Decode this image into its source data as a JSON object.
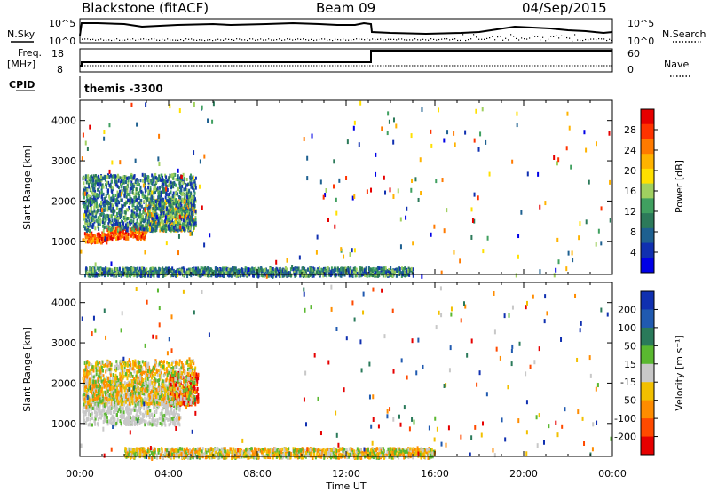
{
  "header": {
    "radar": "Blackstone (fitACF)",
    "beam": "Beam 09",
    "date": "04/Sep/2015"
  },
  "noise_panel": {
    "left_label": "N.Sky",
    "left_ticks": [
      "10^5",
      "10^0"
    ],
    "right_ticks": [
      "10^5",
      "10^0"
    ],
    "right_label": "N.Search"
  },
  "freq_panel": {
    "left_label_1": "Freq.",
    "left_label_2": "[MHz]",
    "left_ticks": [
      "18",
      "8"
    ],
    "right_ticks": [
      "60",
      "0"
    ],
    "right_label": "Nave",
    "cpid_label": "CPID",
    "cpid_value": "themis -3300"
  },
  "chart_data": [
    {
      "type": "heatmap",
      "name_panel": "power",
      "ylabel": "Slant Range [km]",
      "yticks": [
        "4000",
        "3000",
        "2000",
        "1000"
      ],
      "ylim": [
        180,
        4500
      ],
      "x_ticks": [
        "00:00",
        "04:00",
        "08:00",
        "12:00",
        "16:00",
        "20:00",
        "00:00"
      ],
      "xlim_hours": [
        0,
        24
      ],
      "colorbar": {
        "label": "Power [dB]",
        "ticks": [
          "28",
          "24",
          "20",
          "16",
          "12",
          "8",
          "4"
        ],
        "colors": [
          "#e60000",
          "#ff3300",
          "#ff7a00",
          "#ffb300",
          "#ffe000",
          "#a0d060",
          "#40a060",
          "#2c7a5a",
          "#1e6090",
          "#1030b0",
          "#0000e6"
        ]
      },
      "features": [
        {
          "desc": "band",
          "t0": 0.1,
          "t1": 1.2,
          "r0": 1000,
          "r1": 1250,
          "level": "high"
        },
        {
          "desc": "band",
          "t0": 1.2,
          "t1": 3.0,
          "r0": 1100,
          "r1": 1400,
          "level": "high"
        },
        {
          "desc": "band",
          "t0": 3.0,
          "t1": 5.2,
          "r0": 1300,
          "r1": 2100,
          "level": "mid"
        },
        {
          "desc": "band",
          "t0": 0.1,
          "t1": 5.2,
          "r0": 1300,
          "r1": 2700,
          "level": "low"
        },
        {
          "desc": "ground",
          "t0": 0.2,
          "t1": 15.0,
          "r0": 180,
          "r1": 380,
          "level": "low"
        }
      ]
    },
    {
      "type": "heatmap",
      "name_panel": "velocity",
      "ylabel": "Slant Range [km]",
      "yticks": [
        "4000",
        "3000",
        "2000",
        "1000"
      ],
      "ylim": [
        180,
        4500
      ],
      "x_ticks": [
        "00:00",
        "04:00",
        "08:00",
        "12:00",
        "16:00",
        "20:00",
        "00:00"
      ],
      "xlabel": "Time UT",
      "xlim_hours": [
        0,
        24
      ],
      "colorbar": {
        "label": "Velocity [m s⁻¹]",
        "ticks": [
          "200",
          "100",
          "50",
          "15",
          "-15",
          "-50",
          "-100",
          "-200"
        ],
        "colors": [
          "#1030b0",
          "#205ab0",
          "#2a7a5a",
          "#5ab830",
          "#c8c8c8",
          "#f2c000",
          "#ff8c00",
          "#ff4a00",
          "#e60000"
        ]
      },
      "features": [
        {
          "desc": "ground-scatter",
          "t0": 0.1,
          "t1": 4.5,
          "r0": 1000,
          "r1": 2100,
          "vel": "grey"
        },
        {
          "desc": "red-patch",
          "t0": 4.0,
          "t1": 5.3,
          "r0": 1500,
          "r1": 2300,
          "vel": "neg-high"
        },
        {
          "desc": "orange-ring",
          "t0": 0.1,
          "t1": 5.2,
          "r0": 1500,
          "r1": 2600,
          "vel": "neg-low"
        },
        {
          "desc": "ground",
          "t0": 2.0,
          "t1": 16.0,
          "r0": 180,
          "r1": 420,
          "vel": "neg-low"
        }
      ]
    }
  ]
}
